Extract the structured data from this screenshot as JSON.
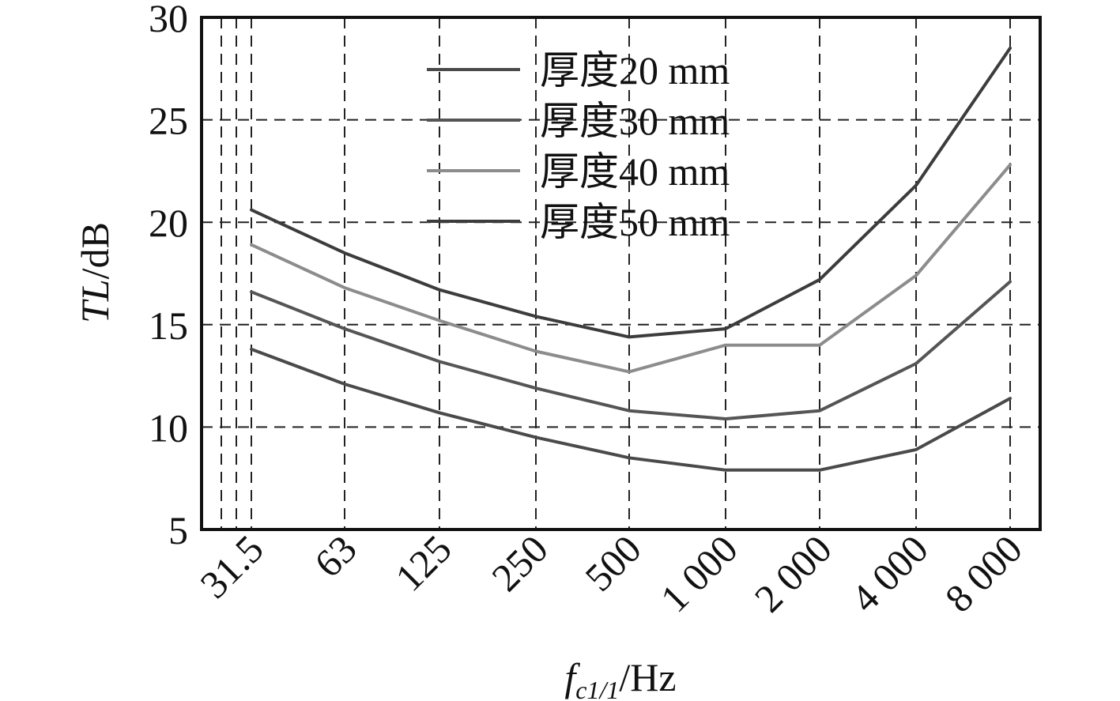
{
  "chart_data": {
    "type": "line",
    "x_categories": [
      "31.5",
      "63",
      "125",
      "250",
      "500",
      "1 000",
      "2 000",
      "4 000",
      "8 000"
    ],
    "xlabel": {
      "main": "f",
      "sub": "c1/1",
      "unit": "/Hz"
    },
    "ylabel": {
      "main": "TL",
      "unit": "/dB"
    },
    "ylim": [
      5,
      30
    ],
    "yticks": [
      "5",
      "10",
      "15",
      "20",
      "25",
      "30"
    ],
    "grid": true,
    "legend_position": "top-center",
    "series": [
      {
        "name": "厚度20 mm",
        "color": "#4a4a4a",
        "values": [
          13.8,
          12.1,
          10.7,
          9.5,
          8.5,
          7.9,
          7.9,
          8.9,
          11.4
        ]
      },
      {
        "name": "厚度30 mm",
        "color": "#555555",
        "values": [
          16.6,
          14.8,
          13.2,
          11.9,
          10.8,
          10.4,
          10.8,
          13.1,
          17.1
        ]
      },
      {
        "name": "厚度40 mm",
        "color": "#8c8c8c",
        "values": [
          18.9,
          16.8,
          15.2,
          13.7,
          12.7,
          14.0,
          14.0,
          17.4,
          22.8
        ]
      },
      {
        "name": "厚度50 mm",
        "color": "#3c3c3c",
        "values": [
          20.6,
          18.5,
          16.7,
          15.4,
          14.4,
          14.8,
          17.2,
          21.8,
          28.5
        ]
      }
    ]
  }
}
